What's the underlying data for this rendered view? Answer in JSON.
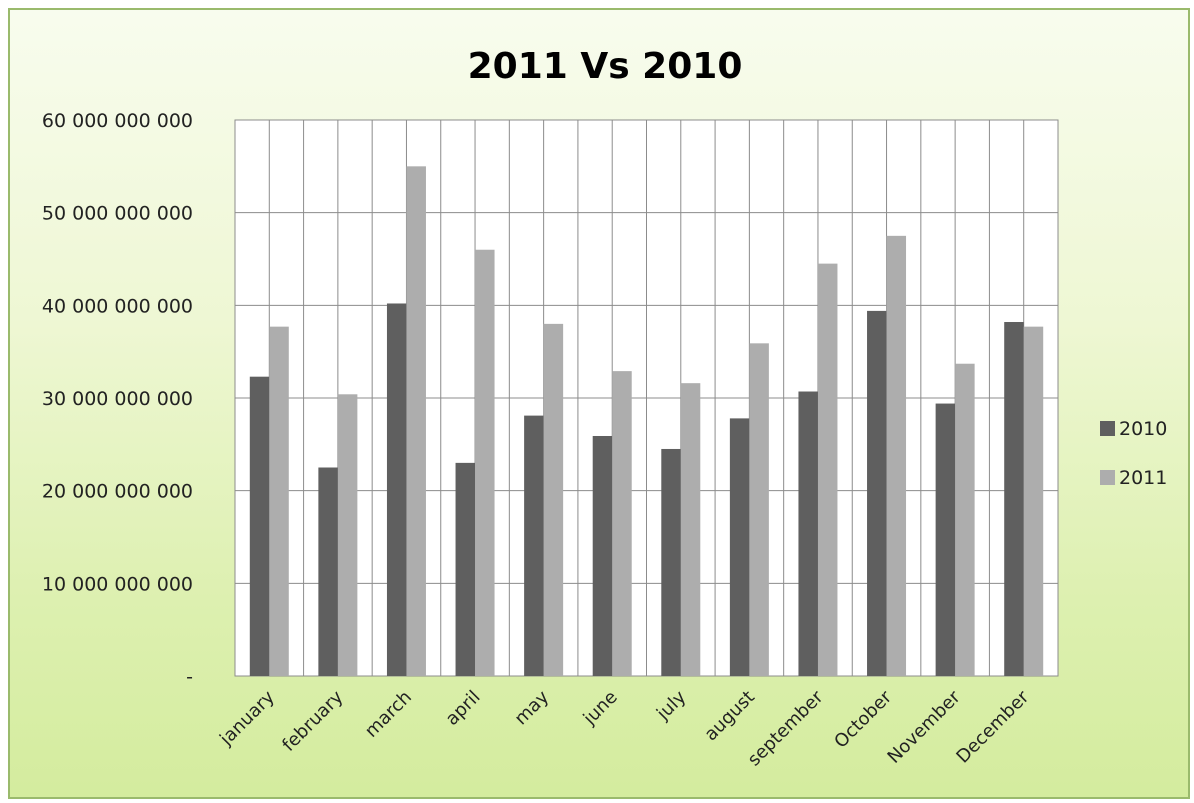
{
  "chart_data": {
    "type": "bar",
    "title": "2011 Vs 2010",
    "xlabel": "",
    "ylabel": "",
    "categories": [
      "january",
      "february",
      "march",
      "april",
      "may",
      "june",
      "july",
      "august",
      "september",
      "October",
      "November",
      "December"
    ],
    "series": [
      {
        "name": "2010",
        "color": "#5f5f5f",
        "values": [
          32300000000,
          22500000000,
          40200000000,
          23000000000,
          28100000000,
          25900000000,
          24500000000,
          27800000000,
          30700000000,
          39400000000,
          29400000000,
          38200000000
        ]
      },
      {
        "name": "2011",
        "color": "#adadad",
        "values": [
          37700000000,
          30400000000,
          55000000000,
          46000000000,
          38000000000,
          32900000000,
          31600000000,
          35900000000,
          44500000000,
          47500000000,
          33700000000,
          37700000000
        ]
      }
    ],
    "ylim": [
      0,
      60000000000
    ],
    "yticks": [
      0,
      10000000000,
      20000000000,
      30000000000,
      40000000000,
      50000000000,
      60000000000
    ],
    "ytick_labels": [
      "-",
      "10 000 000 000",
      "20 000 000 000",
      "30 000 000 000",
      "40 000 000 000",
      "50 000 000 000",
      "60 000 000 000"
    ],
    "grid": true,
    "legend_position": "right"
  }
}
